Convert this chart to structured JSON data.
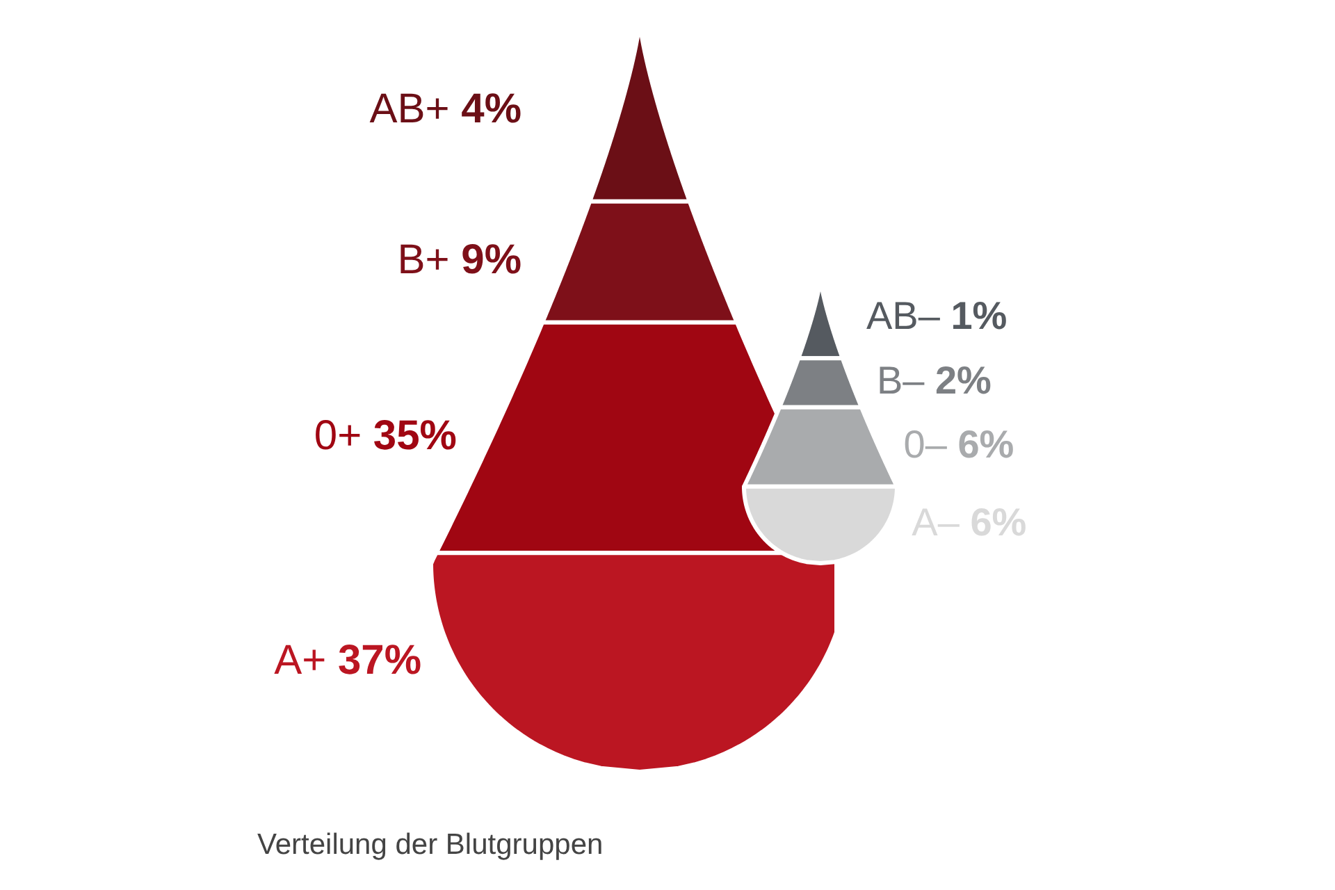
{
  "chart_data": [
    {
      "type": "other",
      "categories": [
        "AB+",
        "B+",
        "0+",
        "A+"
      ],
      "values": [
        4,
        9,
        35,
        37
      ],
      "value_labels": [
        "4%",
        "9%",
        "35%",
        "37%"
      ],
      "colors": [
        "#6b0f16",
        "#7e1019",
        "#a00612",
        "#bb1622"
      ],
      "annotations": [
        "Verteilung der Blutgruppen"
      ]
    },
    {
      "type": "other",
      "categories": [
        "AB–",
        "B–",
        "0–",
        "A–"
      ],
      "values": [
        1,
        2,
        6,
        6
      ],
      "value_labels": [
        "1%",
        "2%",
        "6%",
        "6%"
      ],
      "colors": [
        "#555a60",
        "#7d8084",
        "#a9abad",
        "#d9d9d9"
      ]
    }
  ]
}
